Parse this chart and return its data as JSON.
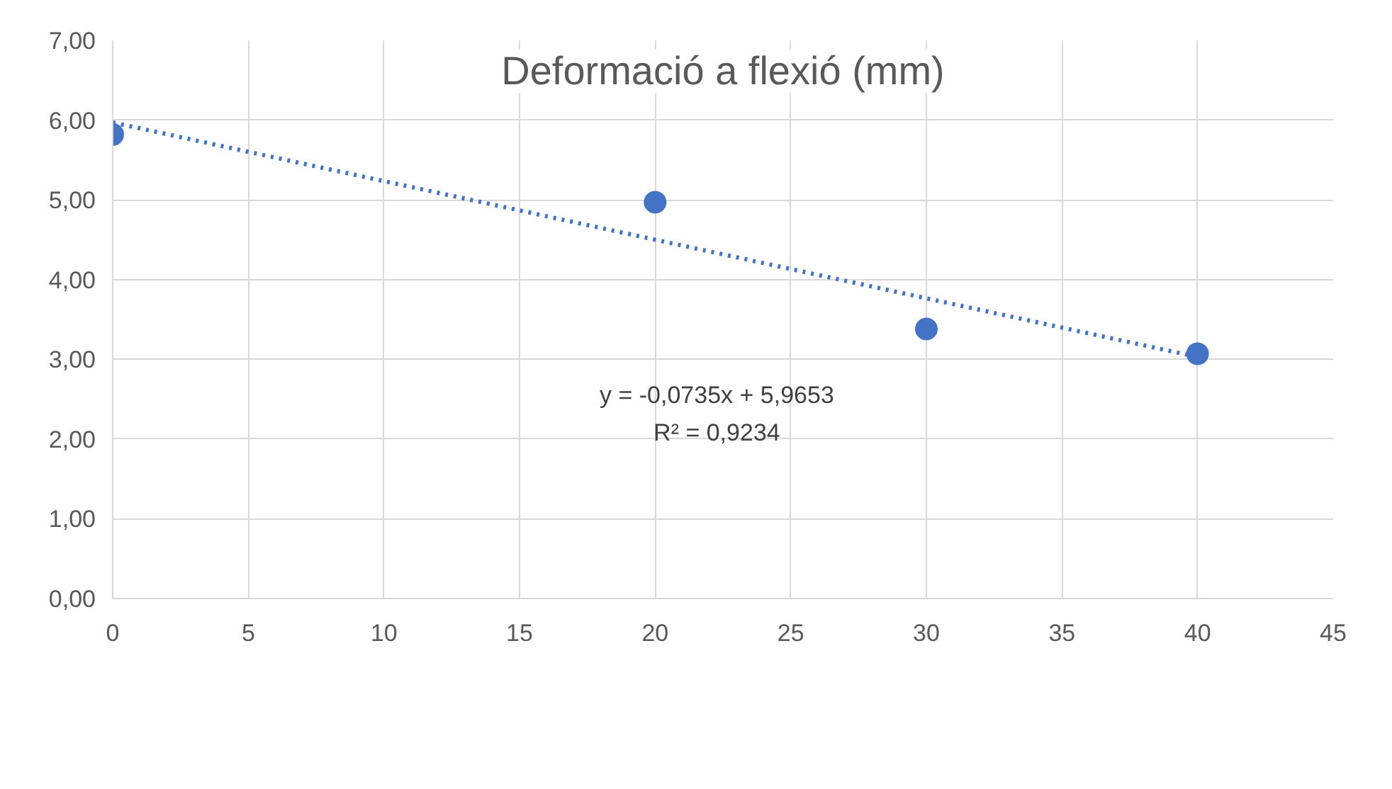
{
  "chart_data": {
    "type": "scatter",
    "title": "Deformació a flexió (mm)",
    "series": [
      {
        "x": [
          0,
          20,
          30,
          40
        ],
        "values": [
          5.82,
          4.97,
          3.38,
          3.07
        ],
        "color": "#4472c4",
        "marker": "circle"
      },
      {
        "type": "line",
        "x": [
          0,
          40
        ],
        "values": [
          5.97,
          3.03
        ],
        "color": "#4472c4",
        "line_style": "dotted",
        "marker": "none"
      }
    ],
    "xlim": [
      0,
      45
    ],
    "xticks": [
      0,
      5,
      10,
      15,
      20,
      25,
      30,
      35,
      40,
      45
    ],
    "ylim": [
      0,
      7
    ],
    "yticks": [
      {
        "value": 0,
        "label": "0,00"
      },
      {
        "value": 1,
        "label": "1,00"
      },
      {
        "value": 2,
        "label": "2,00"
      },
      {
        "value": 3,
        "label": "3,00"
      },
      {
        "value": 4,
        "label": "4,00"
      },
      {
        "value": 5,
        "label": "5,00"
      },
      {
        "value": 6,
        "label": "6,00"
      },
      {
        "value": 7,
        "label": "7,00"
      }
    ],
    "grid": true,
    "annotations": [
      "y = -0,0735x + 5,9653",
      "R² = 0,9234"
    ]
  }
}
